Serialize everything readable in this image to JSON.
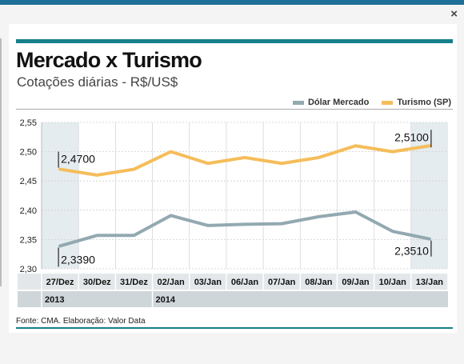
{
  "window": {
    "close_glyph": "×"
  },
  "colors": {
    "brand": "#157f8c",
    "dolar": "#93a9b1",
    "turismo": "#f5bd5a",
    "band": "#e5ecef"
  },
  "chart_data": {
    "type": "line",
    "title": "Mercado x Turismo",
    "subtitle": "Cotações diárias - R$/US$",
    "categories": [
      "27/Dez",
      "30/Dez",
      "31/Dez",
      "02/Jan",
      "03/Jan",
      "06/Jan",
      "07/Jan",
      "08/Jan",
      "09/Jan",
      "10/Jan",
      "13/Jan"
    ],
    "years": [
      {
        "label": "2013",
        "start": 0
      },
      {
        "label": "2014",
        "start": 3
      }
    ],
    "series": [
      {
        "name": "Dólar Mercado",
        "color": "#93a9b1",
        "values": [
          2.339,
          2.357,
          2.357,
          2.391,
          2.374,
          2.376,
          2.377,
          2.389,
          2.397,
          2.364,
          2.351
        ]
      },
      {
        "name": "Turismo (SP)",
        "color": "#f5bd5a",
        "values": [
          2.47,
          2.46,
          2.47,
          2.5,
          2.48,
          2.49,
          2.48,
          2.49,
          2.51,
          2.5,
          2.51
        ]
      }
    ],
    "ylim": [
      2.3,
      2.55
    ],
    "yticks": [
      "2,55",
      "2,50",
      "2,45",
      "2,40",
      "2,35",
      "2,30"
    ],
    "annotations": [
      "2,4700",
      "2,5100",
      "2,3390",
      "2,3510"
    ],
    "grid": true,
    "legend_position": "top-right"
  },
  "source": "Fonte: CMA. Elaboração: Valor Data"
}
